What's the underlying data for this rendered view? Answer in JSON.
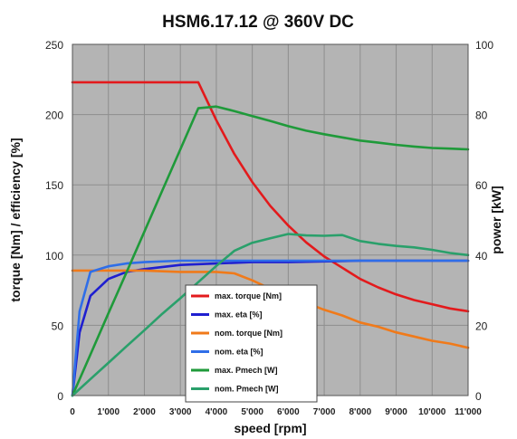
{
  "chart_data": {
    "type": "line",
    "title": "HSM6.17.12  @  360V DC",
    "xlabel": "speed [rpm]",
    "ylabel": "torque [Nm] / efficiency [%]",
    "y2label": "power [kW]",
    "xlim": [
      0,
      11000
    ],
    "ylim": [
      0,
      250
    ],
    "y2lim": [
      0,
      100
    ],
    "x_ticks": [
      0,
      1000,
      2000,
      3000,
      4000,
      5000,
      6000,
      7000,
      8000,
      9000,
      10000,
      11000
    ],
    "x_tick_labels": [
      "0",
      "1'000",
      "2'000",
      "3'000",
      "4'000",
      "5'000",
      "6'000",
      "7'000",
      "8'000",
      "9'000",
      "10'000",
      "11'000"
    ],
    "y_ticks": [
      0,
      50,
      100,
      150,
      200,
      250
    ],
    "y_tick_labels": [
      "0",
      "50",
      "100",
      "150",
      "200",
      "250"
    ],
    "y2_ticks": [
      0,
      20,
      40,
      60,
      80,
      100
    ],
    "y2_tick_labels": [
      "0",
      "20",
      "40",
      "60",
      "80",
      "100"
    ],
    "grid": true,
    "background_color": "#b4b4b4",
    "legend_position": "bottom-center",
    "series": [
      {
        "name": "max. torque [Nm]",
        "color": "#e31a1c",
        "axis": "left",
        "x": [
          0,
          1000,
          2000,
          3000,
          3500,
          4000,
          4500,
          5000,
          5500,
          6000,
          6500,
          7000,
          7500,
          8000,
          8500,
          9000,
          9500,
          10000,
          10500,
          11000
        ],
        "y": [
          223,
          223,
          223,
          223,
          223,
          196,
          172,
          152,
          135,
          121,
          109,
          99,
          91,
          83,
          77,
          72,
          68,
          65,
          62,
          60
        ]
      },
      {
        "name": "max. eta [%]",
        "color": "#1f1fd0",
        "axis": "left",
        "x": [
          0,
          200,
          500,
          1000,
          1500,
          2000,
          3000,
          4000,
          5000,
          6000,
          8000,
          11000
        ],
        "y": [
          0,
          45,
          71,
          83,
          88,
          90,
          93,
          94,
          95,
          95,
          96,
          96
        ]
      },
      {
        "name": "nom. torque [Nm]",
        "color": "#f07a1a",
        "axis": "left",
        "x": [
          0,
          1000,
          2000,
          3000,
          4000,
          4500,
          5000,
          5500,
          6000,
          6500,
          7000,
          7500,
          8000,
          8500,
          9000,
          9500,
          10000,
          10500,
          11000
        ],
        "y": [
          89,
          89,
          89,
          88,
          88,
          87,
          82,
          76,
          71,
          66,
          61,
          57,
          52,
          49,
          45,
          42,
          39,
          37,
          34
        ]
      },
      {
        "name": "nom. eta [%]",
        "color": "#2f6ee8",
        "axis": "left",
        "x": [
          0,
          200,
          500,
          1000,
          1500,
          2000,
          3000,
          4000,
          5000,
          6000,
          8000,
          11000
        ],
        "y": [
          0,
          60,
          88,
          92,
          94,
          95,
          96,
          96,
          96,
          96,
          96,
          96
        ]
      },
      {
        "name": "max. Pmech [W]",
        "color": "#1f9a3a",
        "axis": "right",
        "x": [
          0,
          500,
          1000,
          1500,
          2000,
          2500,
          3000,
          3500,
          4000,
          4500,
          5000,
          5500,
          6000,
          6500,
          7000,
          7500,
          8000,
          8500,
          9000,
          9500,
          10000,
          10500,
          11000
        ],
        "y": [
          0,
          11.7,
          23.4,
          35.0,
          46.7,
          58.4,
          70.1,
          81.8,
          82.3,
          81.0,
          79.6,
          78.2,
          76.7,
          75.4,
          74.4,
          73.5,
          72.6,
          72.0,
          71.4,
          70.9,
          70.5,
          70.3,
          70.1
        ]
      },
      {
        "name": "nom. Pmech [W]",
        "color": "#2aa06b",
        "axis": "right",
        "x": [
          0,
          500,
          1000,
          1500,
          2000,
          2500,
          3000,
          3500,
          4000,
          4500,
          5000,
          5500,
          6000,
          6500,
          7000,
          7500,
          8000,
          8500,
          9000,
          9500,
          10000,
          10500,
          11000
        ],
        "y": [
          0,
          4.7,
          9.3,
          14.0,
          18.6,
          23.3,
          27.7,
          32.3,
          36.9,
          41.2,
          43.5,
          44.8,
          46.0,
          45.6,
          45.5,
          45.7,
          44.0,
          43.2,
          42.6,
          42.2,
          41.5,
          40.6,
          40.0
        ]
      }
    ]
  }
}
